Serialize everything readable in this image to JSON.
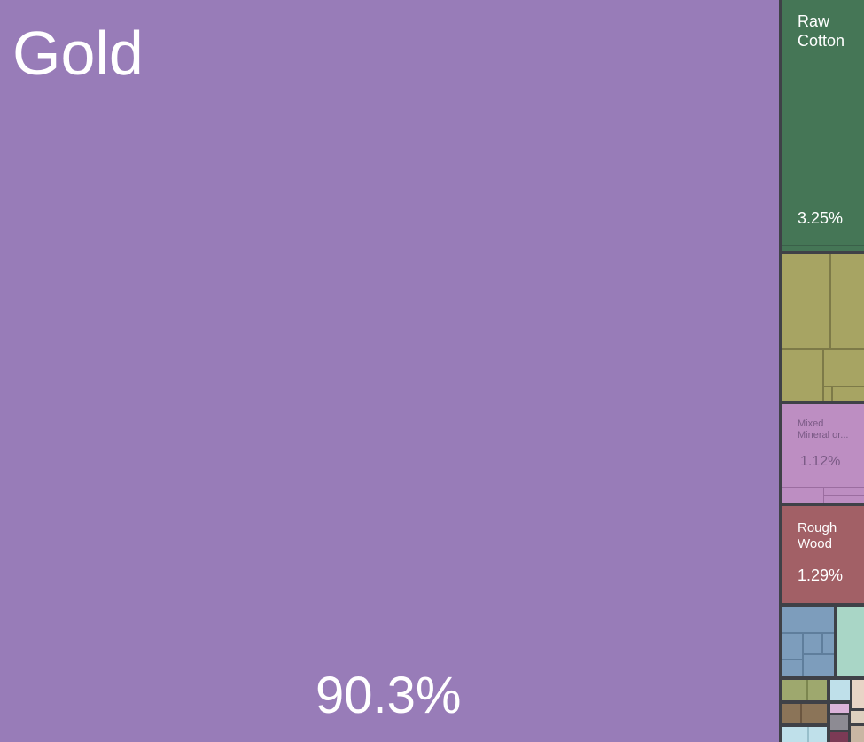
{
  "chart_data": {
    "type": "treemap",
    "title": "",
    "categories": [
      "Gold",
      "Raw Cotton",
      "Mixed Mineral or...",
      "Rough Wood"
    ],
    "values": [
      90.3,
      3.25,
      1.12,
      1.29
    ],
    "value_labels": [
      "90.3%",
      "3.25%",
      "1.12%",
      "1.29%"
    ],
    "labels": {
      "gold": "Gold",
      "raw_cotton": "Raw\nCotton",
      "mixed_mineral": "Mixed\nMineral or...",
      "rough_wood": "Rough\nWood"
    },
    "colors": {
      "gold": "#987cb8",
      "raw_cotton": "#457656",
      "vegetable_group": "#a7a463",
      "mixed_mineral": "#bd8ec2",
      "rough_wood": "#a26066",
      "blue_group": "#7d9dbc",
      "mint": "#a9d6c6",
      "olive_small": "#9ea86e",
      "brown_small": "#8b7458",
      "pink_small": "#dbb3d9",
      "beige_small": "#e8d4c6",
      "light_blue": "#bfe0ea",
      "grey_small": "#8d8b93",
      "maroon_small": "#7b3a55",
      "border": "#3f4147"
    }
  }
}
